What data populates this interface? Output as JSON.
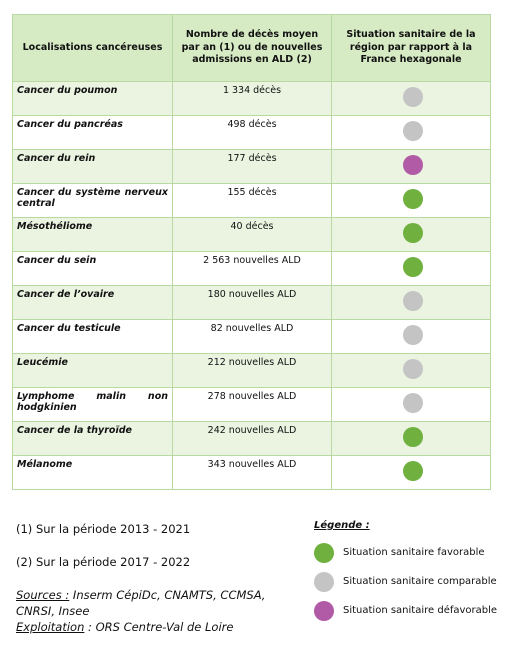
{
  "table": {
    "header": [
      "Localisations cancéreuses",
      "Nombre de décès moyen par an (1) ou de nouvelles admissions en ALD (2)",
      "Situation sanitaire de la région par rapport à la France hexagonale"
    ],
    "rows": [
      {
        "location": "Cancer du poumon",
        "value": "1 334 décès",
        "color": "#c4c4c4"
      },
      {
        "location": "Cancer du pancréas",
        "value": "498 décès",
        "color": "#c4c4c4"
      },
      {
        "location": "Cancer du rein",
        "value": "177 décès",
        "color": "#b15aa6"
      },
      {
        "location": "Cancer du système nerveux central",
        "value": "155 décès",
        "color": "#6fb03f"
      },
      {
        "location": "Mésothéliome",
        "value": "40 décès",
        "color": "#6fb03f"
      },
      {
        "location": "Cancer du sein",
        "value": "2 563 nouvelles ALD",
        "color": "#6fb03f"
      },
      {
        "location": "Cancer de l’ovaire",
        "value": "180 nouvelles ALD",
        "color": "#c4c4c4"
      },
      {
        "location": "Cancer du testicule",
        "value": "82 nouvelles ALD",
        "color": "#c4c4c4"
      },
      {
        "location": "Leucémie",
        "value": "212 nouvelles ALD",
        "color": "#c4c4c4"
      },
      {
        "location": "Lymphome malin non hodgkinien",
        "value": "278 nouvelles ALD",
        "color": "#c4c4c4"
      },
      {
        "location": "Cancer de la thyroïde",
        "value": "242 nouvelles ALD",
        "color": "#6fb03f"
      },
      {
        "location": "Mélanome",
        "value": "343 nouvelles ALD",
        "color": "#6fb03f"
      }
    ]
  },
  "notes": [
    "(1)  Sur la période 2013 - 2021",
    "(2)   Sur la période 2017 - 2022"
  ],
  "sources": {
    "label": "Sources :",
    "text": " Inserm CépiDc, CNAMTS, CCMSA, CNRSI, Insee"
  },
  "exploitation": {
    "label": "Exploitation",
    "text": " : ORS Centre-Val de Loire"
  },
  "legend": {
    "title": "Légende :",
    "items": [
      {
        "label": "Situation sanitaire favorable",
        "color": "#6fb03f"
      },
      {
        "label": "Situation sanitaire comparable",
        "color": "#c4c4c4"
      },
      {
        "label": "Situation sanitaire défavorable",
        "color": "#b15aa6"
      }
    ]
  }
}
